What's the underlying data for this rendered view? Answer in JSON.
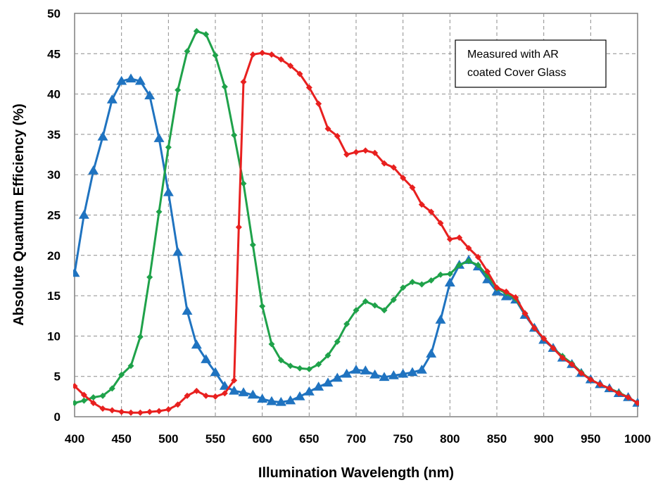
{
  "chart_data": {
    "type": "line",
    "title": "",
    "xlabel": "Illumination Wavelength (nm)",
    "ylabel": "Absolute Quantum Efficiency (%)",
    "xlim": [
      400,
      1000
    ],
    "ylim": [
      0,
      50
    ],
    "xticks": [
      400,
      450,
      500,
      550,
      600,
      650,
      700,
      750,
      800,
      850,
      900,
      950,
      1000
    ],
    "yticks": [
      0,
      5,
      10,
      15,
      20,
      25,
      30,
      35,
      40,
      45,
      50
    ],
    "grid": true,
    "annotation": [
      "Measured with AR",
      "coated Cover Glass"
    ],
    "series": [
      {
        "color": "#1f73c0",
        "marker": "triangle",
        "x": [
          400,
          410,
          420,
          430,
          440,
          450,
          460,
          470,
          480,
          490,
          500,
          510,
          520,
          530,
          540,
          550,
          560,
          570,
          580,
          590,
          600,
          610,
          620,
          630,
          640,
          650,
          660,
          670,
          680,
          690,
          700,
          710,
          720,
          730,
          740,
          750,
          760,
          770,
          780,
          790,
          800,
          810,
          820,
          830,
          840,
          850,
          860,
          870,
          880,
          890,
          900,
          910,
          920,
          930,
          940,
          950,
          960,
          970,
          980,
          990,
          1000
        ],
        "y": [
          17.8,
          25.0,
          30.5,
          34.7,
          39.3,
          41.6,
          41.9,
          41.6,
          39.8,
          34.5,
          27.8,
          20.4,
          13.1,
          8.9,
          7.1,
          5.5,
          3.8,
          3.2,
          3.0,
          2.7,
          2.2,
          1.9,
          1.8,
          2.0,
          2.5,
          3.1,
          3.7,
          4.2,
          4.8,
          5.3,
          5.8,
          5.7,
          5.2,
          4.9,
          5.1,
          5.3,
          5.5,
          5.8,
          7.8,
          12.0,
          16.6,
          18.8,
          19.4,
          18.6,
          17.0,
          15.5,
          14.9,
          14.5,
          12.6,
          11.0,
          9.5,
          8.5,
          7.3,
          6.5,
          5.4,
          4.6,
          4.0,
          3.5,
          2.9,
          2.4,
          1.7
        ]
      },
      {
        "color": "#1fa24a",
        "marker": "diamond",
        "x": [
          400,
          410,
          420,
          430,
          440,
          450,
          460,
          470,
          480,
          490,
          500,
          510,
          520,
          530,
          540,
          550,
          560,
          570,
          580,
          590,
          600,
          610,
          620,
          630,
          640,
          650,
          660,
          670,
          680,
          690,
          700,
          710,
          720,
          730,
          740,
          750,
          760,
          770,
          780,
          790,
          800,
          810,
          820,
          830,
          840,
          850,
          860,
          870,
          880,
          890,
          900,
          910,
          920,
          930,
          940,
          950,
          960,
          970,
          980,
          990,
          1000
        ],
        "y": [
          1.7,
          2.0,
          2.4,
          2.6,
          3.5,
          5.2,
          6.3,
          9.9,
          17.3,
          25.4,
          33.4,
          40.5,
          45.3,
          47.8,
          47.4,
          44.8,
          40.9,
          34.9,
          28.9,
          21.3,
          13.7,
          9.0,
          7.0,
          6.3,
          6.0,
          5.9,
          6.5,
          7.6,
          9.3,
          11.5,
          13.2,
          14.3,
          13.8,
          13.2,
          14.5,
          16.0,
          16.7,
          16.4,
          16.9,
          17.6,
          17.7,
          18.8,
          19.3,
          18.8,
          17.5,
          15.9,
          15.3,
          14.6,
          12.8,
          11.0,
          9.7,
          8.5,
          7.5,
          6.6,
          5.5,
          4.6,
          4.0,
          3.5,
          3.0,
          2.4,
          1.7
        ]
      },
      {
        "color": "#e8201f",
        "marker": "diamond",
        "x": [
          400,
          410,
          420,
          430,
          440,
          450,
          460,
          470,
          480,
          490,
          500,
          510,
          520,
          530,
          540,
          550,
          560,
          570,
          575,
          580,
          590,
          600,
          610,
          620,
          630,
          640,
          650,
          660,
          670,
          680,
          690,
          700,
          710,
          720,
          730,
          740,
          750,
          760,
          770,
          780,
          790,
          800,
          810,
          820,
          830,
          840,
          850,
          860,
          870,
          880,
          890,
          900,
          910,
          920,
          930,
          940,
          950,
          960,
          970,
          980,
          990,
          1000
        ],
        "y": [
          3.8,
          2.7,
          1.7,
          1.0,
          0.8,
          0.6,
          0.5,
          0.5,
          0.6,
          0.7,
          0.9,
          1.5,
          2.6,
          3.2,
          2.6,
          2.5,
          2.9,
          4.5,
          23.5,
          41.5,
          44.9,
          45.1,
          44.9,
          44.3,
          43.5,
          42.5,
          40.8,
          38.8,
          35.7,
          34.8,
          32.5,
          32.8,
          33.0,
          32.7,
          31.4,
          30.9,
          29.6,
          28.4,
          26.3,
          25.4,
          24.0,
          22.0,
          22.2,
          20.9,
          19.8,
          18.0,
          16.0,
          15.5,
          14.8,
          12.8,
          11.0,
          9.7,
          8.5,
          7.3,
          6.5,
          5.4,
          4.6,
          4.0,
          3.5,
          2.9,
          2.4,
          1.7
        ]
      }
    ]
  }
}
